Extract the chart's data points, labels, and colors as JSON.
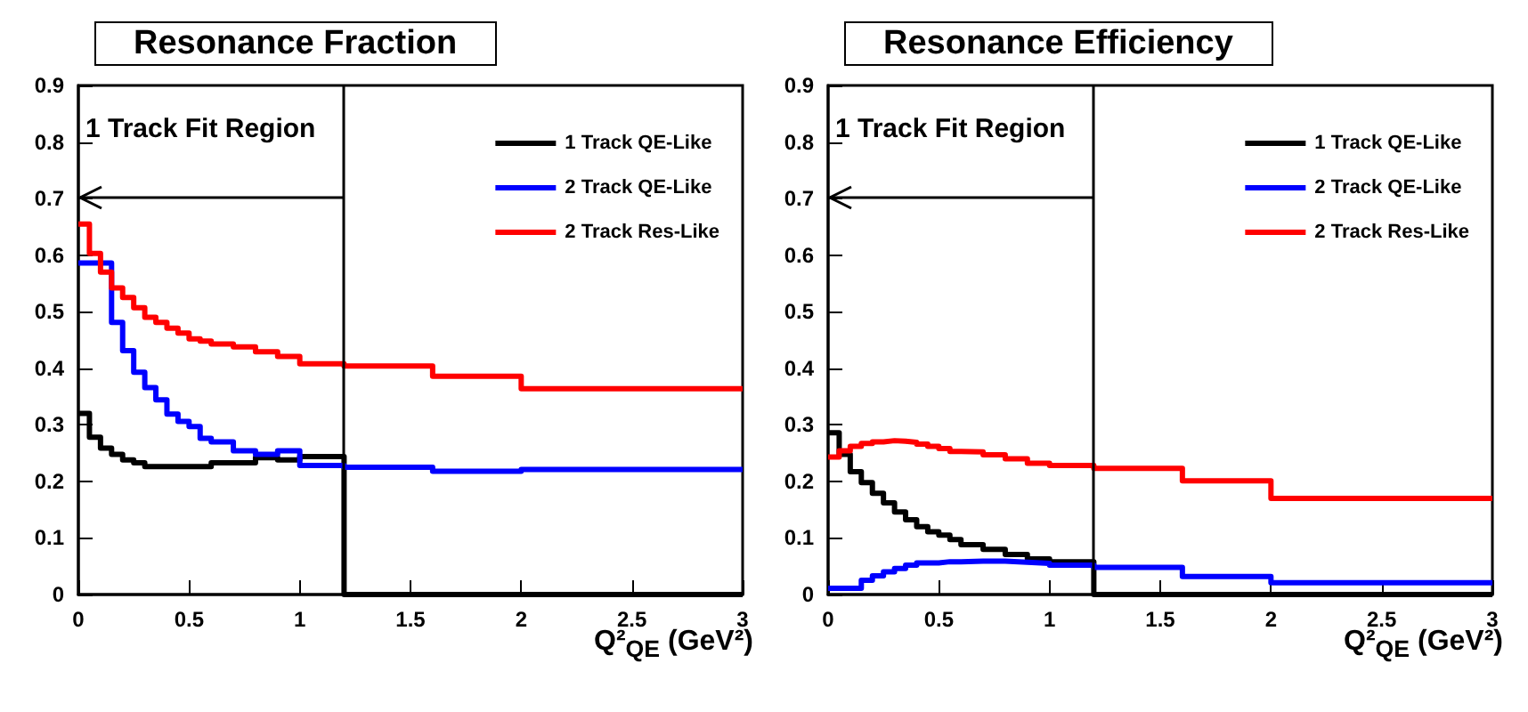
{
  "chart_data": [
    {
      "type": "histogram",
      "title": "Resonance Fraction",
      "xlabel": "Q²$_{QE}$ (GeV²)",
      "bins": [
        0,
        0.05,
        0.1,
        0.15,
        0.2,
        0.25,
        0.3,
        0.35,
        0.4,
        0.45,
        0.5,
        0.55,
        0.6,
        0.7,
        0.8,
        0.9,
        1.0,
        1.2,
        1.6,
        2.0,
        3.0
      ],
      "series": [
        {
          "name": "1 Track QE-Like",
          "color": "#000000",
          "values": [
            0.32,
            0.278,
            0.259,
            0.248,
            0.238,
            0.233,
            0.226,
            0.226,
            0.226,
            0.226,
            0.226,
            0.226,
            0.233,
            0.233,
            0.242,
            0.238,
            0.244,
            0,
            0,
            0
          ]
        },
        {
          "name": "2 Track QE-Like",
          "color": "#0000ff",
          "values": [
            0.586,
            0.586,
            0.586,
            0.481,
            0.431,
            0.393,
            0.366,
            0.344,
            0.319,
            0.306,
            0.297,
            0.276,
            0.27,
            0.254,
            0.248,
            0.254,
            0.228,
            0.225,
            0.218,
            0.221
          ]
        },
        {
          "name": "2 Track Res-Like",
          "color": "#ff0000",
          "values": [
            0.655,
            0.603,
            0.57,
            0.542,
            0.525,
            0.507,
            0.49,
            0.481,
            0.471,
            0.462,
            0.452,
            0.448,
            0.443,
            0.438,
            0.429,
            0.421,
            0.408,
            0.404,
            0.386,
            0.364
          ]
        }
      ],
      "xlim": [
        0,
        3
      ],
      "xticks": [
        0,
        0.5,
        1,
        1.5,
        2,
        2.5,
        3
      ],
      "ylim": [
        0,
        0.9
      ],
      "yticks": [
        0,
        0.1,
        0.2,
        0.3,
        0.4,
        0.5,
        0.6,
        0.7,
        0.8,
        0.9
      ],
      "ref_lines": [
        {
          "axis": "x",
          "value": 1.2,
          "color": "#000000"
        }
      ],
      "annotations": [
        "1 Track Fit Region"
      ],
      "legend": "top right",
      "grid": false
    },
    {
      "type": "histogram",
      "title": "Resonance Efficiency",
      "xlabel": "Q²$_{QE}$ (GeV²)",
      "bins": [
        0,
        0.05,
        0.1,
        0.15,
        0.2,
        0.25,
        0.3,
        0.35,
        0.4,
        0.45,
        0.5,
        0.55,
        0.6,
        0.7,
        0.8,
        0.9,
        1.0,
        1.2,
        1.6,
        2.0,
        3.0
      ],
      "series": [
        {
          "name": "1 Track QE-Like",
          "color": "#000000",
          "values": [
            0.286,
            0.248,
            0.217,
            0.198,
            0.179,
            0.162,
            0.146,
            0.132,
            0.12,
            0.111,
            0.105,
            0.097,
            0.088,
            0.08,
            0.071,
            0.063,
            0.058,
            0,
            0,
            0
          ]
        },
        {
          "name": "2 Track QE-Like",
          "color": "#0000ff",
          "values": [
            0.011,
            0.011,
            0.011,
            0.025,
            0.033,
            0.04,
            0.046,
            0.052,
            0.056,
            0.056,
            0.058,
            0.058,
            0.059,
            0.059,
            0.057,
            0.055,
            0.052,
            0.048,
            0.032,
            0.021
          ]
        },
        {
          "name": "2 Track Res-Like",
          "color": "#ff0000",
          "values": [
            0.243,
            0.254,
            0.262,
            0.267,
            0.27,
            0.272,
            0.271,
            0.269,
            0.266,
            0.262,
            0.258,
            0.253,
            0.252,
            0.247,
            0.24,
            0.232,
            0.228,
            0.223,
            0.201,
            0.17
          ]
        }
      ],
      "xlim": [
        0,
        3
      ],
      "xticks": [
        0,
        0.5,
        1,
        1.5,
        2,
        2.5,
        3
      ],
      "ylim": [
        0,
        0.9
      ],
      "yticks": [
        0,
        0.1,
        0.2,
        0.3,
        0.4,
        0.5,
        0.6,
        0.7,
        0.8,
        0.9
      ],
      "ref_lines": [
        {
          "axis": "x",
          "value": 1.2,
          "color": "#000000"
        }
      ],
      "annotations": [
        "1 Track Fit Region"
      ],
      "legend": "top right",
      "grid": false
    }
  ]
}
